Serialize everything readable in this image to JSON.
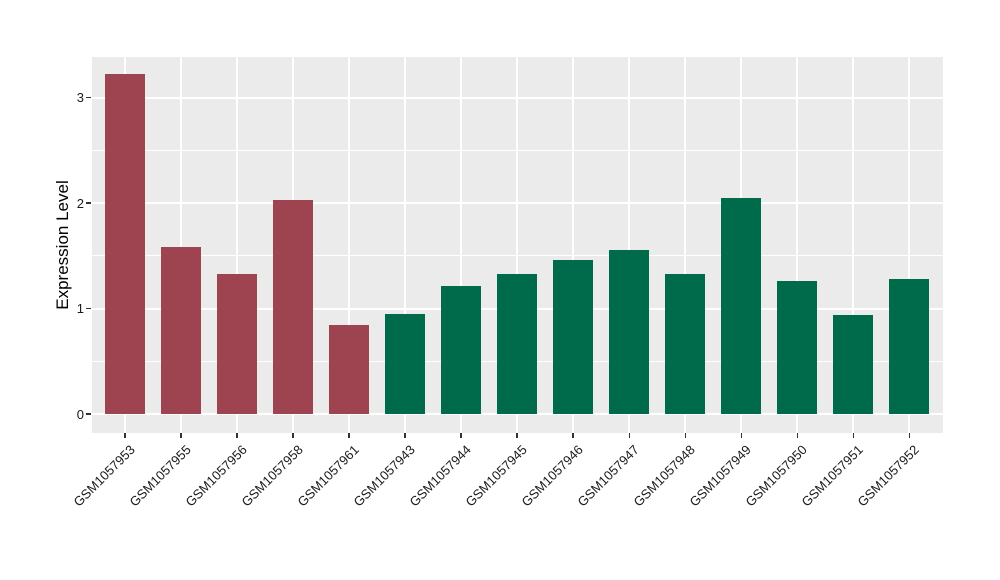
{
  "figure": {
    "background": "#FFFFFF"
  },
  "chart_data": {
    "type": "bar",
    "title": "",
    "xlabel": "",
    "ylabel": "Expression Level",
    "ylim": [
      -0.18,
      3.38
    ],
    "yticks": [
      0,
      1,
      2,
      3
    ],
    "yticks_minor": [
      0.5,
      1.5,
      2.5
    ],
    "grid": true,
    "legend_position": "none",
    "panel_background": "#EBEBEB",
    "grid_color": "#FFFFFF",
    "axis_text_color": "#1A1A1A",
    "categories": [
      "GSM1057953",
      "GSM1057955",
      "GSM1057956",
      "GSM1057958",
      "GSM1057961",
      "GSM1057943",
      "GSM1057944",
      "GSM1057945",
      "GSM1057946",
      "GSM1057947",
      "GSM1057948",
      "GSM1057949",
      "GSM1057950",
      "GSM1057951",
      "GSM1057952"
    ],
    "values": [
      3.22,
      1.58,
      1.33,
      2.03,
      0.84,
      0.95,
      1.21,
      1.33,
      1.46,
      1.55,
      1.33,
      2.05,
      1.26,
      0.94,
      1.28
    ],
    "bar_groups": [
      "red",
      "red",
      "red",
      "red",
      "red",
      "green",
      "green",
      "green",
      "green",
      "green",
      "green",
      "green",
      "green",
      "green",
      "green"
    ],
    "group_colors": {
      "red": "#9E4450",
      "green": "#006B4A"
    }
  }
}
